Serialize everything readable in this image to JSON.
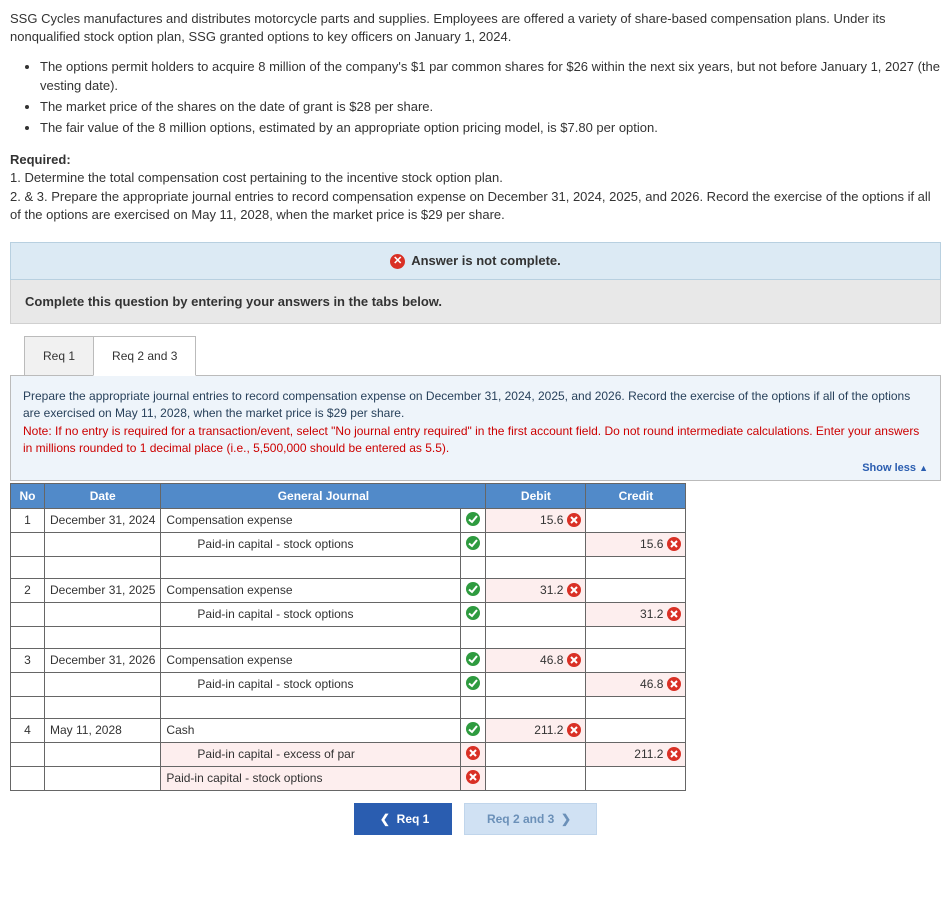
{
  "problem": {
    "intro": "SSG Cycles manufactures and distributes motorcycle parts and supplies. Employees are offered a variety of share-based compensation plans. Under its nonqualified stock option plan, SSG granted options to key officers on January 1, 2024.",
    "bullets": [
      "The options permit holders to acquire 8 million of the company's $1 par common shares for $26 within the next six years, but not before January 1, 2027 (the vesting date).",
      "The market price of the shares on the date of grant is $28 per share.",
      "The fair value of the 8 million options, estimated by an appropriate option pricing model, is $7.80 per option."
    ],
    "required_label": "Required:",
    "req1": "1. Determine the total compensation cost pertaining to the incentive stock option plan.",
    "req23": "2. & 3. Prepare the appropriate journal entries to record compensation expense on December 31, 2024, 2025, and 2026. Record the exercise of the options if all of the options are exercised on May 11, 2028, when the market price is $29 per share."
  },
  "alert": "Answer is not complete.",
  "complete_msg": "Complete this question by entering your answers in the tabs below.",
  "tabs": {
    "t1": "Req 1",
    "t2": "Req 2 and 3"
  },
  "instructions": {
    "main": "Prepare the appropriate journal entries to record compensation expense on December 31, 2024, 2025, and 2026. Record the exercise of the options if all of the options are exercised on May 11, 2028, when the market price is $29 per share.",
    "note": "Note: If no entry is required for a transaction/event, select \"No journal entry required\" in the first account field. Do not round intermediate calculations. Enter your answers in millions rounded to 1 decimal place (i.e., 5,500,000 should be entered as 5.5).",
    "showless": "Show less"
  },
  "table": {
    "headers": {
      "no": "No",
      "date": "Date",
      "gj": "General Journal",
      "debit": "Debit",
      "credit": "Credit"
    },
    "rows": {
      "r1": {
        "no": "1",
        "date": "December 31, 2024",
        "gj": "Compensation expense",
        "mark": "ok",
        "debit": "15.6",
        "debit_ok": false
      },
      "r2": {
        "gj": "Paid-in capital - stock options",
        "indent": true,
        "mark": "ok",
        "credit": "15.6",
        "credit_ok": false
      },
      "r3": {
        "no": "2",
        "date": "December 31, 2025",
        "gj": "Compensation expense",
        "mark": "ok",
        "debit": "31.2",
        "debit_ok": false
      },
      "r4": {
        "gj": "Paid-in capital - stock options",
        "indent": true,
        "mark": "ok",
        "credit": "31.2",
        "credit_ok": false
      },
      "r5": {
        "no": "3",
        "date": "December 31, 2026",
        "gj": "Compensation expense",
        "mark": "ok",
        "debit": "46.8",
        "debit_ok": false
      },
      "r6": {
        "gj": "Paid-in capital - stock options",
        "indent": true,
        "mark": "ok",
        "credit": "46.8",
        "credit_ok": false
      },
      "r7": {
        "no": "4",
        "date": "May 11, 2028",
        "gj": "Cash",
        "mark": "ok",
        "debit": "211.2",
        "debit_ok": false
      },
      "r8": {
        "gj": "Paid-in capital - excess of par",
        "indent": true,
        "mark": "bad",
        "credit": "211.2",
        "credit_ok": false
      },
      "r9": {
        "gj": "Paid-in capital - stock options",
        "indent": false,
        "mark": "bad"
      }
    }
  },
  "nav": {
    "prev": "Req 1",
    "next": "Req 2 and 3"
  }
}
